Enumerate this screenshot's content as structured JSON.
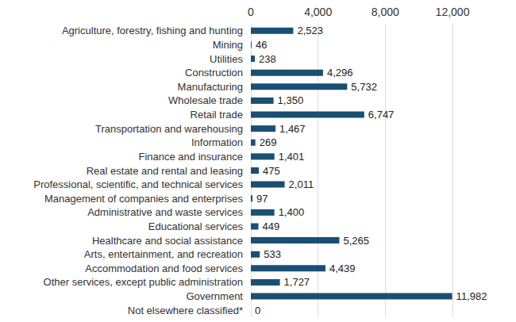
{
  "chart_data": {
    "type": "bar",
    "orientation": "horizontal",
    "categories": [
      "Agriculture, forestry, fishing and hunting",
      "Mining",
      "Utilities",
      "Construction",
      "Manufacturing",
      "Wholesale trade",
      "Retail trade",
      "Transportation and warehousing",
      "Information",
      "Finance and insurance",
      "Real estate and rental and leasing",
      "Professional, scientific, and technical services",
      "Management of companies and enterprises",
      "Administrative and waste services",
      "Educational services",
      "Healthcare and social assistance",
      "Arts, entertainment, and recreation",
      "Accommodation and food services",
      "Other services, except public administration",
      "Government",
      "Not elsewhere classified*"
    ],
    "values": [
      2523,
      46,
      238,
      4296,
      5732,
      1350,
      6747,
      1467,
      269,
      1401,
      475,
      2011,
      97,
      1400,
      449,
      5265,
      533,
      4439,
      1727,
      11982,
      0
    ],
    "value_labels": [
      "2,523",
      "46",
      "238",
      "4,296",
      "5,732",
      "1,350",
      "6,747",
      "1,467",
      "269",
      "1,401",
      "475",
      "2,011",
      "97",
      "1,400",
      "449",
      "5,265",
      "533",
      "4,439",
      "1,727",
      "11,982",
      "0"
    ],
    "color": "#1a4f72",
    "xlim": [
      0,
      12000
    ],
    "xticks": [
      0,
      {
        "value": 4000,
        "label": "4,000"
      },
      {
        "value": 8000,
        "label": "8,000"
      },
      {
        "value": 12000,
        "label": "12,000"
      }
    ],
    "grid": true,
    "data_labels": true
  }
}
